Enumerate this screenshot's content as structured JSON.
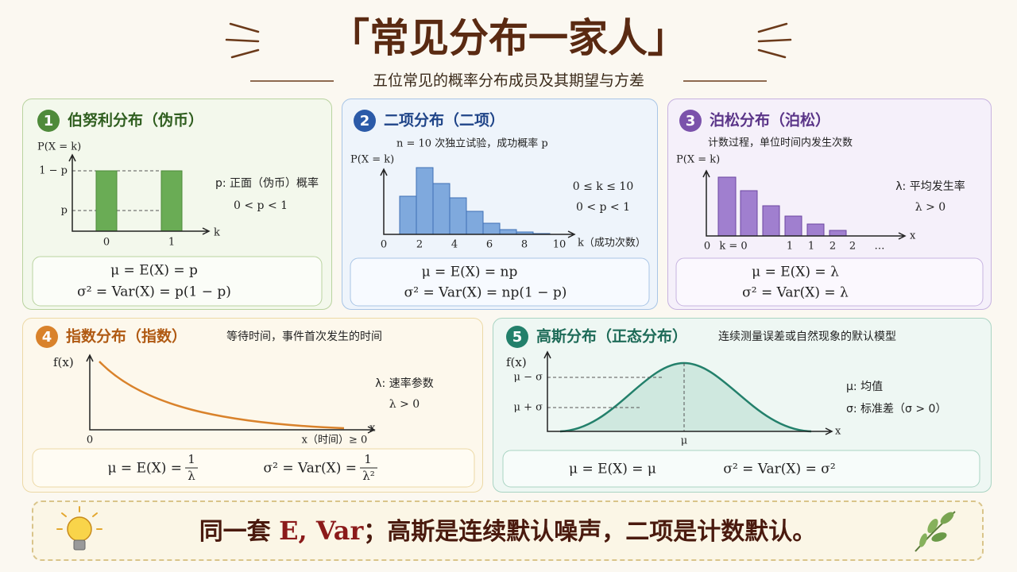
{
  "header": {
    "title": "「常见分布一家人」",
    "subtitle": "五位常见的概率分布成员及其期望与方差"
  },
  "cards": [
    {
      "number": "1",
      "title": "伯努利分布（伪币）",
      "y_label": "P(X = k)",
      "axis_labels": [
        "1 − p",
        "p",
        "0",
        "1",
        "k"
      ],
      "notes": [
        "p: 正面（伪币）概率",
        "0 < p < 1"
      ],
      "formulas": [
        "μ = E(X) = p",
        "σ² = Var(X) = p(1 − p)"
      ]
    },
    {
      "number": "2",
      "title": "二项分布（二项）",
      "subtitle": "n = 10 次独立试验，成功概率 p",
      "y_label": "P(X = k)",
      "axis_labels": [
        "0",
        "2",
        "4",
        "6",
        "8",
        "10",
        "k（成功次数）"
      ],
      "notes": [
        "0 ≤ k ≤ 10",
        "0 < p < 1"
      ],
      "formulas": [
        "μ = E(X) = np",
        "σ² = Var(X) = np(1 − p)"
      ]
    },
    {
      "number": "3",
      "title": "泊松分布（泊松）",
      "subtitle": "计数过程，单位时间内发生次数",
      "y_label": "P(X = k)",
      "axis_labels": [
        "0",
        "k = 0",
        "1",
        "1",
        "2",
        "2",
        "…",
        "x"
      ],
      "notes": [
        "λ: 平均发生率",
        "λ > 0"
      ],
      "formulas": [
        "μ = E(X) = λ",
        "σ² = Var(X) = λ"
      ]
    },
    {
      "number": "4",
      "title": "指数分布（指数）",
      "subtitle": "等待时间，事件首次发生的时间",
      "y_label": "f(x)",
      "axis_labels": [
        "0",
        "x（时间）≥ 0",
        "x"
      ],
      "notes": [
        "λ: 速率参数",
        "λ > 0"
      ],
      "formulas": [
        {
          "lhs": "μ = E(X) =",
          "num": "1",
          "den": "λ"
        },
        {
          "lhs": "σ² = Var(X) =",
          "num": "1",
          "den": "λ²"
        }
      ]
    },
    {
      "number": "5",
      "title": "高斯分布（正态分布）",
      "subtitle": "连续测量误差或自然现象的默认模型",
      "y_label": "f(x)",
      "axis_labels": [
        "μ − σ",
        "μ + σ",
        "μ",
        "x"
      ],
      "notes": [
        "μ: 均值",
        "σ: 标准差（σ > 0）"
      ],
      "formulas": [
        "μ = E(X) = μ",
        "σ² = Var(X) = σ²"
      ]
    }
  ],
  "footer": {
    "text_before": "同一套",
    "highlight": "E, Var",
    "text_after": "；高斯是连续默认噪声，二项是计数默认。"
  }
}
